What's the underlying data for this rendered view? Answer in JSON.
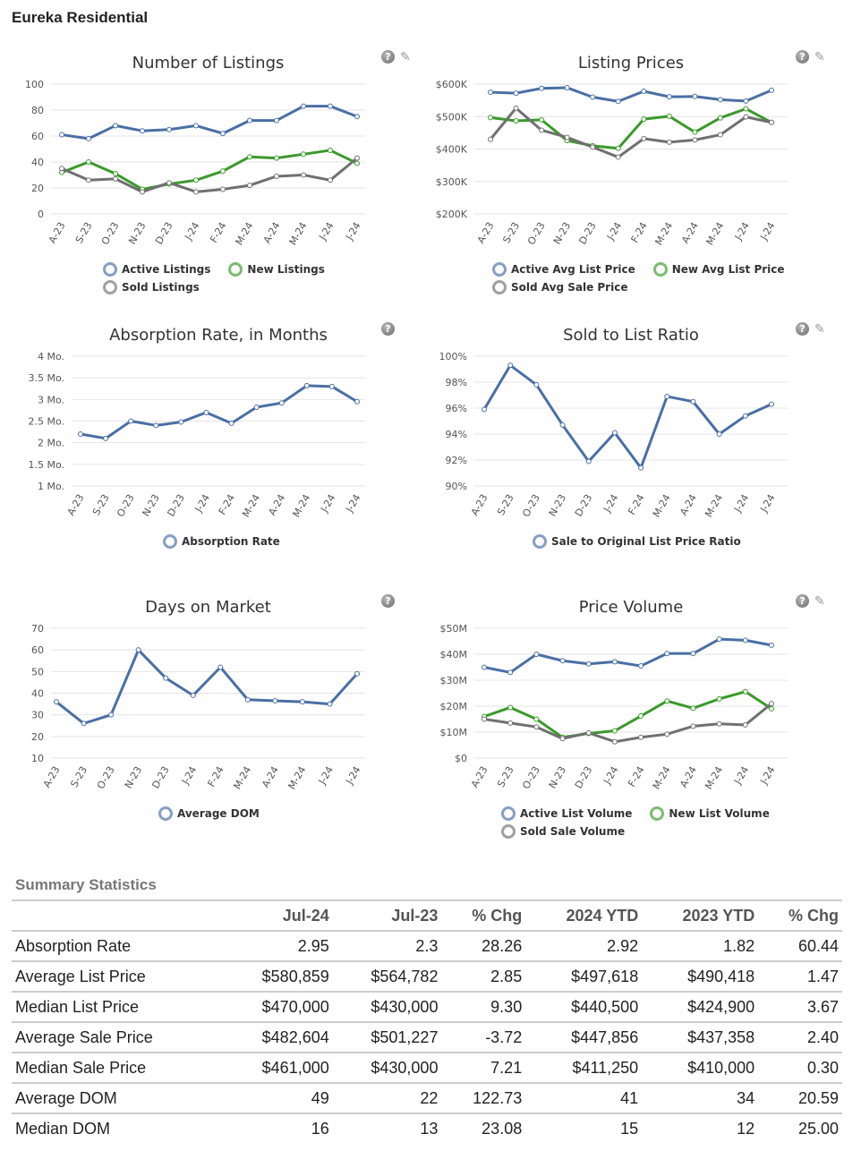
{
  "page_title": "Eureka Residential",
  "icons": {
    "help": "?",
    "tool": "✎"
  },
  "chart_data": [
    {
      "type": "line",
      "title": "Number of Listings",
      "categories": [
        "A-23",
        "S-23",
        "O-23",
        "N-23",
        "D-23",
        "J-24",
        "F-24",
        "M-24",
        "A-24",
        "M-24",
        "J-24",
        "J-24"
      ],
      "ylim": [
        0,
        100
      ],
      "yticks": [
        "0",
        "20",
        "40",
        "60",
        "80",
        "100"
      ],
      "series": [
        {
          "name": "Active Listings",
          "color": "#4a6fa5",
          "values": [
            61,
            58,
            68,
            64,
            65,
            68,
            62,
            72,
            72,
            83,
            83,
            75
          ]
        },
        {
          "name": "New Listings",
          "color": "#3a9a2a",
          "values": [
            32,
            40,
            31,
            19,
            23,
            26,
            33,
            44,
            43,
            46,
            49,
            39
          ]
        },
        {
          "name": "Sold Listings",
          "color": "#707070",
          "values": [
            35,
            26,
            27,
            17,
            24,
            17,
            19,
            22,
            29,
            30,
            26,
            43
          ]
        }
      ],
      "tools": true
    },
    {
      "type": "line",
      "title": "Listing Prices",
      "categories": [
        "A-23",
        "S-23",
        "O-23",
        "N-23",
        "D-23",
        "J-24",
        "F-24",
        "M-24",
        "A-24",
        "M-24",
        "J-24",
        "J-24"
      ],
      "ylim": [
        200,
        600
      ],
      "yticks": [
        "$200K",
        "$300K",
        "$400K",
        "$500K",
        "$600K"
      ],
      "series": [
        {
          "name": "Active Avg List Price",
          "color": "#4a6fa5",
          "values": [
            575,
            572,
            587,
            589,
            560,
            547,
            578,
            561,
            562,
            552,
            548,
            581
          ]
        },
        {
          "name": "New Avg List Price",
          "color": "#3a9a2a",
          "values": [
            497,
            487,
            490,
            426,
            410,
            402,
            492,
            501,
            452,
            496,
            524,
            482
          ]
        },
        {
          "name": "Sold Avg Sale Price",
          "color": "#707070",
          "values": [
            430,
            526,
            458,
            436,
            406,
            375,
            432,
            421,
            428,
            444,
            499,
            482
          ]
        }
      ],
      "tools": true
    },
    {
      "type": "line",
      "title": "Absorption Rate, in Months",
      "categories": [
        "A-23",
        "S-23",
        "O-23",
        "N-23",
        "D-23",
        "J-24",
        "F-24",
        "M-24",
        "A-24",
        "M-24",
        "J-24",
        "J-24"
      ],
      "ylim": [
        1,
        4
      ],
      "yticks": [
        "1 Mo.",
        "1.5 Mo.",
        "2 Mo.",
        "2.5 Mo.",
        "3 Mo.",
        "3.5 Mo.",
        "4 Mo."
      ],
      "series": [
        {
          "name": "Absorption Rate",
          "color": "#4a6fa5",
          "values": [
            2.2,
            2.1,
            2.5,
            2.4,
            2.48,
            2.7,
            2.45,
            2.82,
            2.92,
            3.32,
            3.3,
            2.95
          ]
        }
      ],
      "tools": false
    },
    {
      "type": "line",
      "title": "Sold to List Ratio",
      "categories": [
        "A-23",
        "S-23",
        "O-23",
        "N-23",
        "D-23",
        "J-24",
        "F-24",
        "M-24",
        "A-24",
        "M-24",
        "J-24",
        "J-24"
      ],
      "ylim": [
        90,
        100
      ],
      "yticks": [
        "90%",
        "92%",
        "94%",
        "96%",
        "98%",
        "100%"
      ],
      "series": [
        {
          "name": "Sale to Original List Price Ratio",
          "color": "#4a6fa5",
          "values": [
            95.9,
            99.3,
            97.8,
            94.7,
            91.9,
            94.1,
            91.4,
            96.9,
            96.5,
            94.0,
            95.4,
            96.3
          ]
        }
      ],
      "tools": true
    },
    {
      "type": "line",
      "title": "Days on Market",
      "categories": [
        "A-23",
        "S-23",
        "O-23",
        "N-23",
        "D-23",
        "J-24",
        "F-24",
        "M-24",
        "A-24",
        "M-24",
        "J-24",
        "J-24"
      ],
      "ylim": [
        10,
        70
      ],
      "yticks": [
        "10",
        "20",
        "30",
        "40",
        "50",
        "60",
        "70"
      ],
      "series": [
        {
          "name": "Average DOM",
          "color": "#4a6fa5",
          "values": [
            36,
            26,
            30,
            60,
            47,
            39,
            52,
            37,
            36.5,
            36,
            35,
            49
          ]
        }
      ],
      "tools": false
    },
    {
      "type": "line",
      "title": "Price Volume",
      "categories": [
        "A-23",
        "S-23",
        "O-23",
        "N-23",
        "D-23",
        "J-24",
        "F-24",
        "M-24",
        "A-24",
        "M-24",
        "J-24",
        "J-24"
      ],
      "ylim": [
        0,
        50
      ],
      "yticks": [
        "$0",
        "$10M",
        "$20M",
        "$30M",
        "$40M",
        "$50M"
      ],
      "series": [
        {
          "name": "Active List Volume",
          "color": "#4a6fa5",
          "values": [
            35,
            33,
            40,
            37.5,
            36.3,
            37.1,
            35.5,
            40.3,
            40.3,
            45.8,
            45.4,
            43.5
          ]
        },
        {
          "name": "New List Volume",
          "color": "#3a9a2a",
          "values": [
            16,
            19.5,
            15,
            8,
            9.5,
            10.5,
            16.2,
            22,
            19.2,
            22.8,
            25.6,
            19
          ]
        },
        {
          "name": "Sold Sale Volume",
          "color": "#707070",
          "values": [
            15,
            13.5,
            12,
            7.5,
            9.7,
            6.3,
            8,
            9.2,
            12.3,
            13.2,
            12.8,
            21
          ]
        }
      ],
      "tools": true
    }
  ],
  "summary": {
    "title": "Summary Statistics",
    "headers": [
      "",
      "Jul-24",
      "Jul-23",
      "% Chg",
      "2024 YTD",
      "2023 YTD",
      "% Chg"
    ],
    "rows": [
      [
        "Absorption Rate",
        "2.95",
        "2.3",
        "28.26",
        "2.92",
        "1.82",
        "60.44"
      ],
      [
        "Average List Price",
        "$580,859",
        "$564,782",
        "2.85",
        "$497,618",
        "$490,418",
        "1.47"
      ],
      [
        "Median List Price",
        "$470,000",
        "$430,000",
        "9.30",
        "$440,500",
        "$424,900",
        "3.67"
      ],
      [
        "Average Sale Price",
        "$482,604",
        "$501,227",
        "-3.72",
        "$447,856",
        "$437,358",
        "2.40"
      ],
      [
        "Median Sale Price",
        "$461,000",
        "$430,000",
        "7.21",
        "$411,250",
        "$410,000",
        "0.30"
      ],
      [
        "Average DOM",
        "49",
        "22",
        "122.73",
        "41",
        "34",
        "20.59"
      ],
      [
        "Median DOM",
        "16",
        "13",
        "23.08",
        "15",
        "12",
        "25.00"
      ]
    ]
  }
}
